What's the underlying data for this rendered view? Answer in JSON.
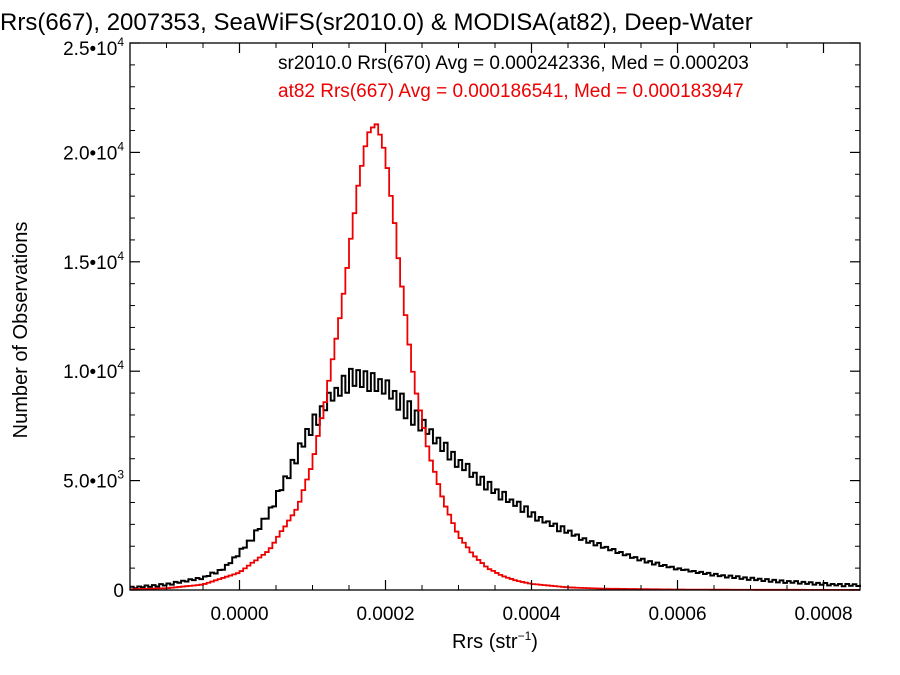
{
  "chart_data": {
    "type": "histogram",
    "title": "Rrs(667), 2007353, SeaWiFS(sr2010.0) & MODISA(at82), Deep-Water",
    "xlabel": "Rrs (str",
    "xlabel_sup": "−1",
    "xlabel_close": ")",
    "ylabel": "Number of Observations",
    "xlim": [
      -0.00015,
      0.00085
    ],
    "ylim": [
      0,
      25000
    ],
    "x_ticks": [
      {
        "value": 0.0,
        "label": "0.0000"
      },
      {
        "value": 0.0002,
        "label": "0.0002"
      },
      {
        "value": 0.0004,
        "label": "0.0004"
      },
      {
        "value": 0.0006,
        "label": "0.0006"
      },
      {
        "value": 0.0008,
        "label": "0.0008"
      }
    ],
    "y_ticks": [
      {
        "value": 0,
        "mant": "0",
        "exp": ""
      },
      {
        "value": 5000,
        "mant": "5.0•10",
        "exp": "3"
      },
      {
        "value": 10000,
        "mant": "1.0•10",
        "exp": "4"
      },
      {
        "value": 15000,
        "mant": "1.5•10",
        "exp": "4"
      },
      {
        "value": 20000,
        "mant": "2.0•10",
        "exp": "4"
      },
      {
        "value": 25000,
        "mant": "2.5•10",
        "exp": "4"
      }
    ],
    "bin_width": 5e-06,
    "series": [
      {
        "name": "sr2010.0",
        "legend": "sr2010.0 Rrs(670) Avg = 0.000242336, Med = 0.000203",
        "color": "#000000",
        "stats": {
          "avg": 0.000242336
        },
        "points": [
          [
            -0.00015,
            100
          ],
          [
            -0.0001,
            250
          ],
          [
            -5e-05,
            550
          ],
          [
            -2e-05,
            1000
          ],
          [
            0.0,
            1700
          ],
          [
            2e-05,
            2500
          ],
          [
            4e-05,
            3500
          ],
          [
            6e-05,
            4900
          ],
          [
            8e-05,
            6300
          ],
          [
            0.0001,
            7500
          ],
          [
            0.00012,
            8600
          ],
          [
            0.00014,
            9300
          ],
          [
            0.00016,
            9700
          ],
          [
            0.00018,
            9600
          ],
          [
            0.0002,
            9200
          ],
          [
            0.00022,
            8600
          ],
          [
            0.00024,
            7900
          ],
          [
            0.00026,
            7200
          ],
          [
            0.00028,
            6500
          ],
          [
            0.0003,
            5900
          ],
          [
            0.00032,
            5300
          ],
          [
            0.00034,
            4800
          ],
          [
            0.00036,
            4300
          ],
          [
            0.00038,
            3900
          ],
          [
            0.0004,
            3500
          ],
          [
            0.00042,
            3100
          ],
          [
            0.00044,
            2800
          ],
          [
            0.00046,
            2500
          ],
          [
            0.00048,
            2200
          ],
          [
            0.0005,
            1950
          ],
          [
            0.00052,
            1700
          ],
          [
            0.00054,
            1500
          ],
          [
            0.00056,
            1300
          ],
          [
            0.00058,
            1130
          ],
          [
            0.0006,
            980
          ],
          [
            0.00062,
            860
          ],
          [
            0.00064,
            750
          ],
          [
            0.00066,
            660
          ],
          [
            0.00068,
            580
          ],
          [
            0.0007,
            510
          ],
          [
            0.00072,
            450
          ],
          [
            0.00074,
            400
          ],
          [
            0.00076,
            350
          ],
          [
            0.00078,
            310
          ],
          [
            0.0008,
            270
          ],
          [
            0.00082,
            240
          ],
          [
            0.00085,
            210
          ]
        ]
      },
      {
        "name": "at82",
        "legend": "at82 Rrs(667) Avg = 0.000186541, Med = 0.000183947",
        "color": "#ee0000",
        "stats": {
          "avg": 0.000186541
        },
        "points": [
          [
            -0.00015,
            30
          ],
          [
            -0.0001,
            80
          ],
          [
            -5e-05,
            250
          ],
          [
            0.0,
            800
          ],
          [
            4e-05,
            1800
          ],
          [
            8e-05,
            3800
          ],
          [
            0.0001,
            5800
          ],
          [
            0.00012,
            9000
          ],
          [
            0.00014,
            13000
          ],
          [
            0.00016,
            17800
          ],
          [
            0.00017,
            20000
          ],
          [
            0.00018,
            21300
          ],
          [
            0.00019,
            21100
          ],
          [
            0.0002,
            19800
          ],
          [
            0.00021,
            17500
          ],
          [
            0.00022,
            14500
          ],
          [
            0.00023,
            11800
          ],
          [
            0.00024,
            9400
          ],
          [
            0.00026,
            6200
          ],
          [
            0.00028,
            4000
          ],
          [
            0.0003,
            2500
          ],
          [
            0.00032,
            1600
          ],
          [
            0.00034,
            1000
          ],
          [
            0.00036,
            650
          ],
          [
            0.00038,
            420
          ],
          [
            0.0004,
            280
          ],
          [
            0.00045,
            120
          ],
          [
            0.0005,
            60
          ],
          [
            0.0006,
            20
          ],
          [
            0.0007,
            10
          ],
          [
            0.00085,
            5
          ]
        ]
      }
    ]
  }
}
